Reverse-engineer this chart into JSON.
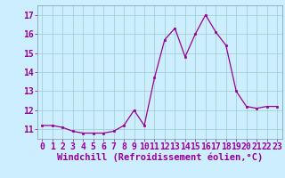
{
  "x": [
    0,
    1,
    2,
    3,
    4,
    5,
    6,
    7,
    8,
    9,
    10,
    11,
    12,
    13,
    14,
    15,
    16,
    17,
    18,
    19,
    20,
    21,
    22,
    23
  ],
  "y": [
    11.2,
    11.2,
    11.1,
    10.9,
    10.8,
    10.8,
    10.8,
    10.9,
    11.2,
    12.0,
    11.2,
    13.7,
    15.7,
    16.3,
    14.8,
    16.0,
    17.0,
    16.1,
    15.4,
    13.0,
    12.2,
    12.1,
    12.2,
    12.2
  ],
  "line_color": "#990099",
  "marker": "s",
  "marker_size": 2.0,
  "bg_color": "#cceeff",
  "grid_color": "#99cccc",
  "xlabel": "Windchill (Refroidissement éolien,°C)",
  "xlabel_color": "#990099",
  "xlabel_fontsize": 7.5,
  "tick_color": "#990099",
  "tick_fontsize": 7,
  "ylim": [
    10.5,
    17.5
  ],
  "yticks": [
    11,
    12,
    13,
    14,
    15,
    16,
    17
  ],
  "xticks": [
    0,
    1,
    2,
    3,
    4,
    5,
    6,
    7,
    8,
    9,
    10,
    11,
    12,
    13,
    14,
    15,
    16,
    17,
    18,
    19,
    20,
    21,
    22,
    23
  ],
  "spine_color": "#7799aa"
}
